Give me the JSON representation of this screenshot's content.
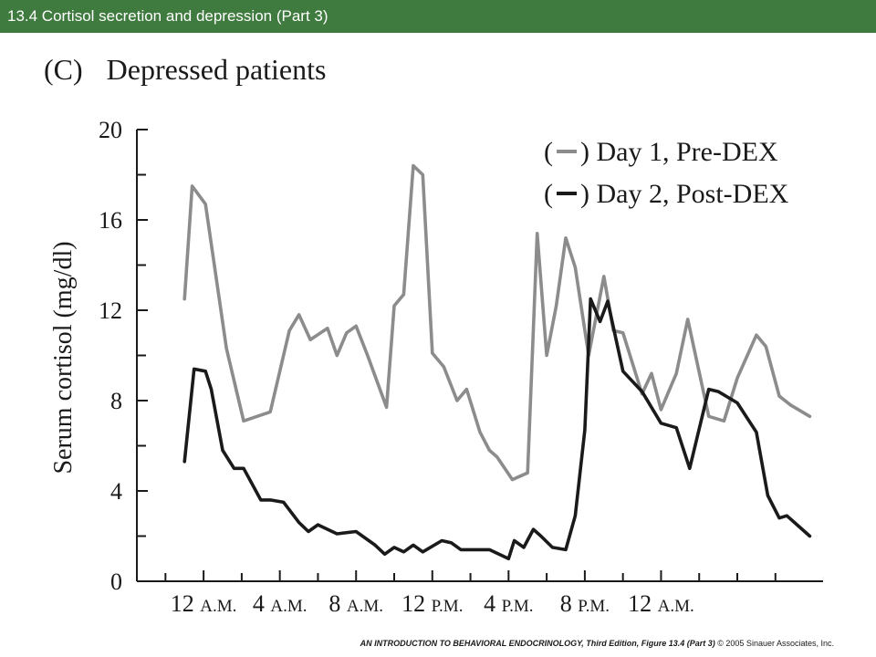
{
  "header": {
    "title": "13.4  Cortisol secretion and depression (Part 3)",
    "bar_color": "#3f7a3f"
  },
  "panel": {
    "label": "(C)",
    "title": "Depressed patients"
  },
  "chart_data": {
    "type": "line",
    "ylabel": "Serum cortisol (mg/dl)",
    "xlabel": "",
    "ylim": [
      0,
      20
    ],
    "yticks": [
      0,
      4,
      8,
      12,
      16,
      20
    ],
    "xlim": [
      -3.5,
      32.5
    ],
    "xticks": [
      {
        "pos": 0,
        "num": "12",
        "suffix": "A.M."
      },
      {
        "pos": 4,
        "num": "4",
        "suffix": "A.M."
      },
      {
        "pos": 8,
        "num": "8",
        "suffix": "A.M."
      },
      {
        "pos": 12,
        "num": "12",
        "suffix": "P.M."
      },
      {
        "pos": 16,
        "num": "4",
        "suffix": "P.M."
      },
      {
        "pos": 20,
        "num": "8",
        "suffix": "P.M."
      },
      {
        "pos": 24,
        "num": "12",
        "suffix": "A.M."
      }
    ],
    "grid": false,
    "legend_position": "top-right",
    "series": [
      {
        "name": "Day 1, Pre-DEX",
        "color": "#8c8c8c",
        "x": [
          -1,
          -0.6,
          0.1,
          1.2,
          2.1,
          3.5,
          4.5,
          5.0,
          5.6,
          6.5,
          7.0,
          7.5,
          8.0,
          8.6,
          9.6,
          10.0,
          10.5,
          11.0,
          11.5,
          12.0,
          12.6,
          13.3,
          13.8,
          14.5,
          15.0,
          15.4,
          16.2,
          17.0,
          17.5,
          18.0,
          18.5,
          19.0,
          19.5,
          20.2,
          21.0,
          21.5,
          22.0,
          23.0,
          23.5,
          24.0,
          24.8,
          25.4,
          26.5,
          27.3,
          28.0,
          29.0,
          29.5,
          30.2,
          30.8,
          31.8
        ],
        "y": [
          12.5,
          17.5,
          16.7,
          10.3,
          7.1,
          7.5,
          11.1,
          11.8,
          10.7,
          11.2,
          10.0,
          11.0,
          11.3,
          10.0,
          7.7,
          12.2,
          12.7,
          18.4,
          18.0,
          10.1,
          9.5,
          8.0,
          8.5,
          6.6,
          5.8,
          5.5,
          4.5,
          4.8,
          15.4,
          10.0,
          12.2,
          15.2,
          13.9,
          10.0,
          13.5,
          11.1,
          11.0,
          8.3,
          9.2,
          7.6,
          9.2,
          11.6,
          7.3,
          7.1,
          9.0,
          10.9,
          10.4,
          8.2,
          7.8,
          7.3
        ],
        "x_tail": [],
        "y_tail": []
      },
      {
        "name": "Day 2, Post-DEX",
        "color": "#1a1a1a",
        "x": [
          -1,
          -0.5,
          0.1,
          0.4,
          1.0,
          1.6,
          2.1,
          3.0,
          3.5,
          4.2,
          5.0,
          5.5,
          6.0,
          7.0,
          8.0,
          9.0,
          9.5,
          10.0,
          10.5,
          11.0,
          11.5,
          12.5,
          13.0,
          13.5,
          14.0,
          15.0,
          16.0,
          16.3,
          16.8,
          17.3,
          17.7,
          18.3,
          19.0,
          19.5,
          20.0,
          20.3,
          20.8,
          21.2,
          22.0,
          23.0,
          24.0,
          24.8,
          25.5,
          26.5,
          27.0,
          28.0,
          29.0,
          29.6,
          30.2,
          30.6,
          31.0,
          31.8
        ],
        "y": [
          5.3,
          9.4,
          9.3,
          8.5,
          5.8,
          5.0,
          5.0,
          3.6,
          3.6,
          3.5,
          2.6,
          2.2,
          2.5,
          2.1,
          2.2,
          1.6,
          1.2,
          1.5,
          1.3,
          1.6,
          1.3,
          1.8,
          1.7,
          1.4,
          1.4,
          1.4,
          1.0,
          1.8,
          1.5,
          2.3,
          2.0,
          1.5,
          1.4,
          2.9,
          6.7,
          12.5,
          11.5,
          12.4,
          9.3,
          8.4,
          7.0,
          6.8,
          5.0,
          8.5,
          8.4,
          7.9,
          6.6,
          3.8,
          2.8,
          2.9,
          2.6,
          2.0
        ],
        "x_tail": [],
        "y_tail": []
      }
    ]
  },
  "footer": {
    "book": "AN INTRODUCTION TO BEHAVIORAL ENDOCRINOLOGY, Third Edition",
    "figure": ", Figure 13.4 (Part 3)",
    "copyright": "  © 2005 Sinauer Associates, Inc."
  }
}
